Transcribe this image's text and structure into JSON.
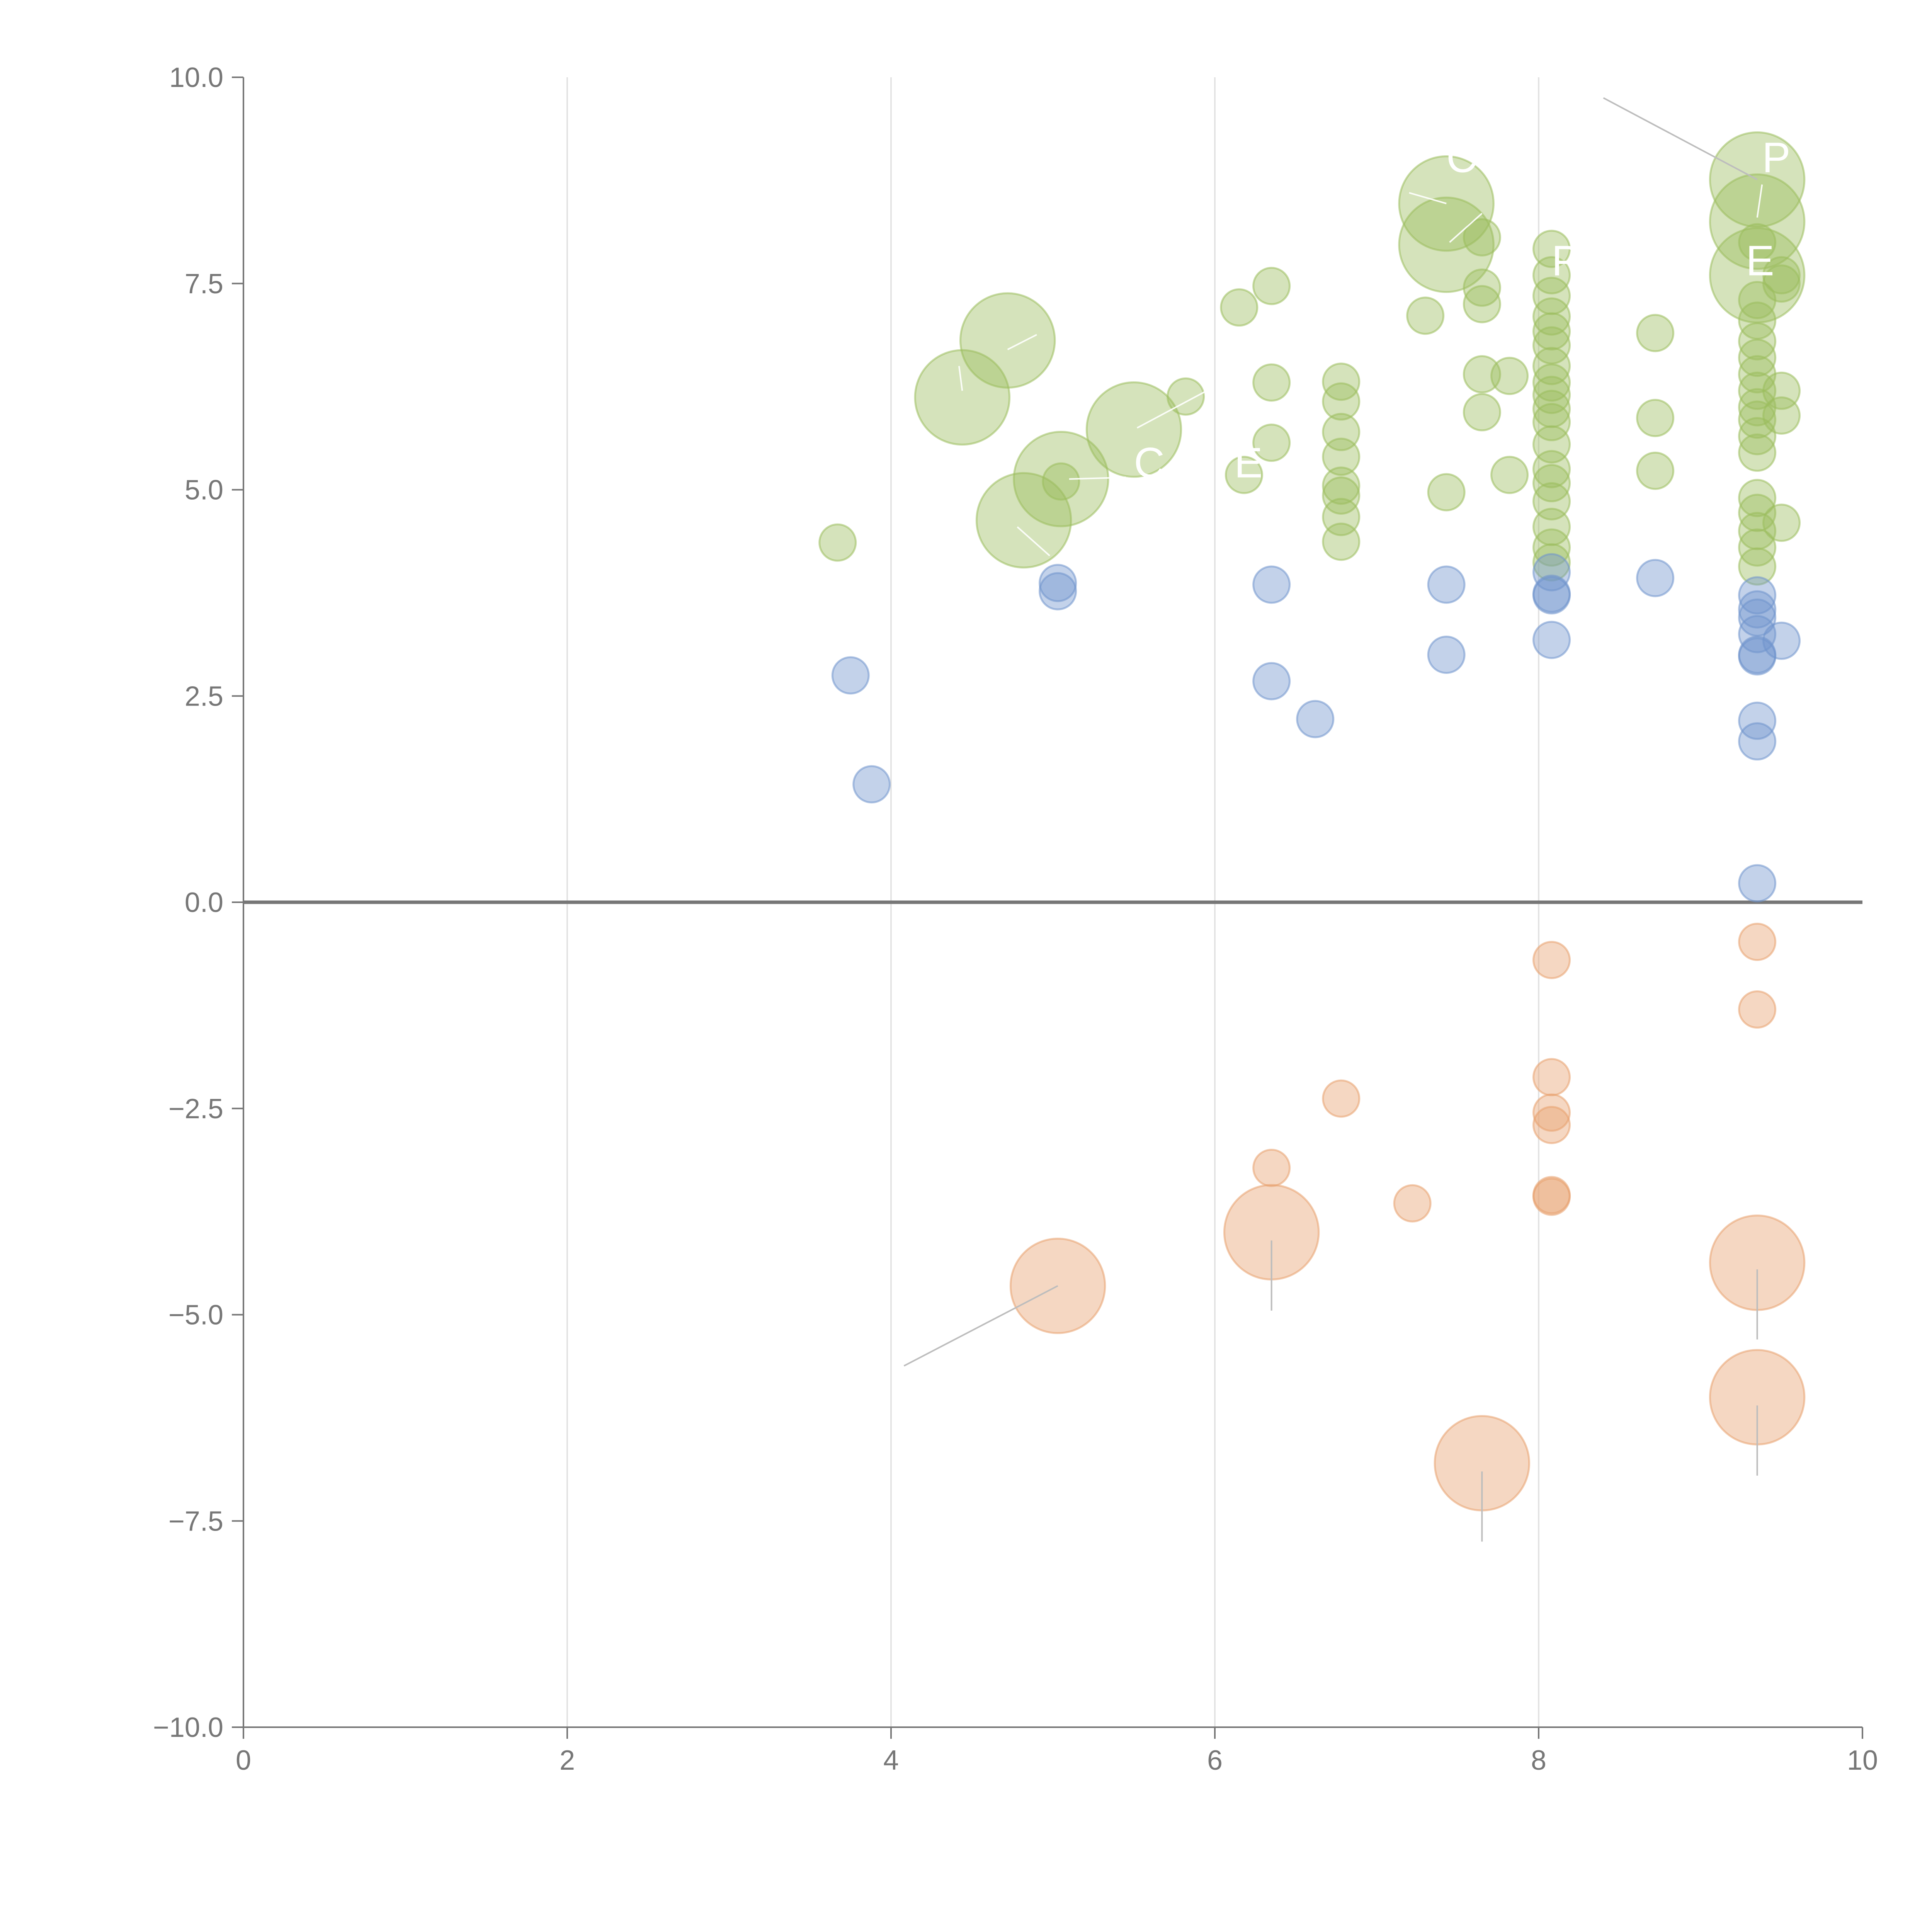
{
  "chart_data": {
    "type": "scatter",
    "title": "",
    "xlabel": "",
    "ylabel": "",
    "xlim": [
      0,
      10
    ],
    "ylim": [
      -10,
      10
    ],
    "x_ticks": [
      "0",
      "2",
      "4",
      "6",
      "8",
      "10"
    ],
    "y_ticks": [
      "−10.0",
      "−7.5",
      "−5.0",
      "−2.5",
      "0.0",
      "2.5",
      "5.0",
      "7.5",
      "10.0"
    ],
    "x_tick_values": [
      0,
      2,
      4,
      6,
      8,
      10
    ],
    "y_tick_values": [
      -10,
      -7.5,
      -5,
      -2.5,
      0,
      2.5,
      5,
      7.5,
      10
    ],
    "grid": "vertical",
    "legend": "none",
    "zero_line": true,
    "colors": {
      "green": "#9bbd5c",
      "blue": "#6f93cc",
      "orange": "#e8a06e"
    },
    "series": [
      {
        "color": "green",
        "points": [
          [
            3.67,
            4.36,
            1
          ],
          [
            4.44,
            6.12,
            2.6
          ],
          [
            4.72,
            6.81,
            2.6
          ],
          [
            4.82,
            4.63,
            2.6
          ],
          [
            5.05,
            5.13,
            2.6
          ],
          [
            5.05,
            5.1,
            1
          ],
          [
            5.5,
            5.73,
            2.6
          ],
          [
            5.82,
            6.13,
            1
          ],
          [
            6.15,
            7.21,
            1
          ],
          [
            6.35,
            7.47,
            1
          ],
          [
            6.35,
            6.3,
            1
          ],
          [
            6.35,
            5.57,
            1
          ],
          [
            6.18,
            5.18,
            1
          ],
          [
            6.78,
            6.31,
            1
          ],
          [
            6.78,
            6.07,
            1
          ],
          [
            6.78,
            5.7,
            1
          ],
          [
            6.78,
            5.4,
            1
          ],
          [
            6.78,
            5.05,
            1
          ],
          [
            6.78,
            4.93,
            1
          ],
          [
            6.78,
            4.67,
            1
          ],
          [
            6.78,
            4.37,
            1
          ],
          [
            7.3,
            7.11,
            1
          ],
          [
            7.43,
            8.47,
            2.6
          ],
          [
            7.43,
            7.97,
            2.6
          ],
          [
            7.43,
            4.97,
            1
          ],
          [
            7.65,
            8.06,
            1
          ],
          [
            7.65,
            7.45,
            1
          ],
          [
            7.65,
            7.25,
            1
          ],
          [
            7.65,
            6.4,
            1
          ],
          [
            7.65,
            5.94,
            1
          ],
          [
            7.82,
            6.38,
            1
          ],
          [
            7.82,
            5.18,
            1
          ],
          [
            8.08,
            7.92,
            1
          ],
          [
            8.08,
            7.6,
            1
          ],
          [
            8.08,
            7.35,
            1
          ],
          [
            8.08,
            7.1,
            1
          ],
          [
            8.08,
            6.92,
            1
          ],
          [
            8.08,
            6.75,
            1
          ],
          [
            8.08,
            6.5,
            1
          ],
          [
            8.08,
            6.3,
            1
          ],
          [
            8.08,
            6.15,
            1
          ],
          [
            8.08,
            5.98,
            1
          ],
          [
            8.08,
            5.82,
            1
          ],
          [
            8.08,
            5.55,
            1
          ],
          [
            8.08,
            5.25,
            1
          ],
          [
            8.08,
            5.08,
            1
          ],
          [
            8.08,
            4.86,
            1
          ],
          [
            8.08,
            4.55,
            1
          ],
          [
            8.08,
            4.3,
            1
          ],
          [
            8.08,
            4.12,
            1
          ],
          [
            8.72,
            6.9,
            1
          ],
          [
            8.72,
            5.87,
            1
          ],
          [
            8.72,
            5.23,
            1
          ],
          [
            9.35,
            8.76,
            2.6
          ],
          [
            9.35,
            8.25,
            2.6
          ],
          [
            9.35,
            7.6,
            2.6
          ],
          [
            9.35,
            8.0,
            1
          ],
          [
            9.35,
            7.3,
            1
          ],
          [
            9.35,
            7.05,
            1
          ],
          [
            9.35,
            6.8,
            1
          ],
          [
            9.35,
            6.6,
            1
          ],
          [
            9.35,
            6.4,
            1
          ],
          [
            9.35,
            6.2,
            1
          ],
          [
            9.35,
            6.0,
            1
          ],
          [
            9.35,
            5.85,
            1
          ],
          [
            9.35,
            5.65,
            1
          ],
          [
            9.35,
            5.45,
            1
          ],
          [
            9.35,
            4.9,
            1
          ],
          [
            9.35,
            4.72,
            1
          ],
          [
            9.35,
            4.5,
            1
          ],
          [
            9.35,
            4.3,
            1
          ],
          [
            9.35,
            4.07,
            1
          ],
          [
            9.5,
            7.6,
            1
          ],
          [
            9.5,
            7.5,
            1
          ],
          [
            9.5,
            6.2,
            1
          ],
          [
            9.5,
            5.9,
            1
          ],
          [
            9.5,
            4.6,
            1
          ]
        ]
      },
      {
        "color": "blue",
        "points": [
          [
            3.75,
            2.75,
            1
          ],
          [
            3.88,
            1.43,
            1
          ],
          [
            5.03,
            3.87,
            1
          ],
          [
            5.03,
            3.77,
            1
          ],
          [
            6.35,
            3.85,
            1
          ],
          [
            6.35,
            2.68,
            1
          ],
          [
            6.62,
            2.22,
            1
          ],
          [
            7.43,
            3.85,
            1
          ],
          [
            7.43,
            3.0,
            1
          ],
          [
            8.08,
            4.0,
            1
          ],
          [
            8.08,
            3.74,
            1
          ],
          [
            8.08,
            3.72,
            1
          ],
          [
            8.08,
            3.18,
            1
          ],
          [
            8.72,
            3.93,
            1
          ],
          [
            9.35,
            3.72,
            1
          ],
          [
            9.35,
            3.55,
            1
          ],
          [
            9.35,
            3.45,
            1
          ],
          [
            9.35,
            3.25,
            1
          ],
          [
            9.35,
            3.0,
            1
          ],
          [
            9.35,
            2.98,
            1
          ],
          [
            9.35,
            2.2,
            1
          ],
          [
            9.35,
            1.95,
            1
          ],
          [
            9.35,
            0.23,
            1
          ],
          [
            9.5,
            3.17,
            1
          ]
        ]
      },
      {
        "color": "orange",
        "points": [
          [
            5.03,
            -4.65,
            2.6
          ],
          [
            6.35,
            -3.22,
            1
          ],
          [
            6.35,
            -4.0,
            2.6
          ],
          [
            6.78,
            -2.38,
            1
          ],
          [
            7.22,
            -3.65,
            1
          ],
          [
            7.65,
            -6.8,
            2.6
          ],
          [
            8.08,
            -0.7,
            1
          ],
          [
            8.08,
            -2.12,
            1
          ],
          [
            8.08,
            -2.55,
            1
          ],
          [
            8.08,
            -2.7,
            1
          ],
          [
            8.08,
            -3.55,
            1
          ],
          [
            8.08,
            -3.57,
            1
          ],
          [
            9.35,
            -0.48,
            1
          ],
          [
            9.35,
            -1.3,
            1
          ],
          [
            9.35,
            -4.37,
            2.6
          ],
          [
            9.35,
            -6.0,
            2.6
          ]
        ]
      }
    ],
    "annotations": [
      {
        "label": "",
        "text_x": 8.4,
        "text_y": 9.75,
        "to_x": 9.35,
        "to_y": 8.76,
        "style": "gray"
      },
      {
        "label": "",
        "text_x": 4.08,
        "text_y": -5.62,
        "to_x": 5.03,
        "to_y": -4.65,
        "style": "gray"
      },
      {
        "label": "",
        "text_x": 6.35,
        "text_y": -4.95,
        "to_x": 6.35,
        "to_y": -4.1,
        "style": "gray"
      },
      {
        "label": "",
        "text_x": 7.65,
        "text_y": -7.75,
        "to_x": 7.65,
        "to_y": -6.9,
        "style": "gray"
      },
      {
        "label": "",
        "text_x": 9.35,
        "text_y": -5.3,
        "to_x": 9.35,
        "to_y": -4.45,
        "style": "gray"
      },
      {
        "label": "",
        "text_x": 9.35,
        "text_y": -6.95,
        "to_x": 9.35,
        "to_y": -6.1,
        "style": "gray"
      },
      {
        "label": "",
        "text_x": 4.9,
        "text_y": 6.88,
        "to_x": 4.72,
        "to_y": 6.7,
        "style": "light"
      },
      {
        "label": "",
        "text_x": 4.42,
        "text_y": 6.5,
        "to_x": 4.44,
        "to_y": 6.2,
        "style": "light"
      },
      {
        "label": "",
        "text_x": 4.78,
        "text_y": 4.55,
        "to_x": 4.98,
        "to_y": 4.2,
        "style": "light"
      },
      {
        "label": "",
        "text_x": 5.1,
        "text_y": 5.13,
        "to_x": 5.45,
        "to_y": 5.15,
        "style": "light"
      },
      {
        "label": "",
        "text_x": 5.52,
        "text_y": 5.75,
        "to_x": 5.95,
        "to_y": 6.2,
        "style": "light"
      },
      {
        "label": "",
        "text_x": 7.2,
        "text_y": 8.6,
        "to_x": 7.43,
        "to_y": 8.47,
        "style": "light"
      },
      {
        "label": "",
        "text_x": 7.65,
        "text_y": 8.35,
        "to_x": 7.45,
        "to_y": 8.0,
        "style": "light"
      },
      {
        "label": "",
        "text_x": 9.38,
        "text_y": 8.7,
        "to_x": 9.35,
        "to_y": 8.3,
        "style": "light"
      }
    ],
    "visible_label_fragments": [
      {
        "text": "P",
        "x": 9.38,
        "y": 8.85
      },
      {
        "text": "P",
        "x": 8.08,
        "y": 7.6
      },
      {
        "text": "E",
        "x": 9.28,
        "y": 7.6
      },
      {
        "text": "C",
        "x": 7.43,
        "y": 8.85
      },
      {
        "text": "E",
        "x": 6.12,
        "y": 5.15
      },
      {
        "text": "C",
        "x": 5.5,
        "y": 5.15
      }
    ]
  }
}
